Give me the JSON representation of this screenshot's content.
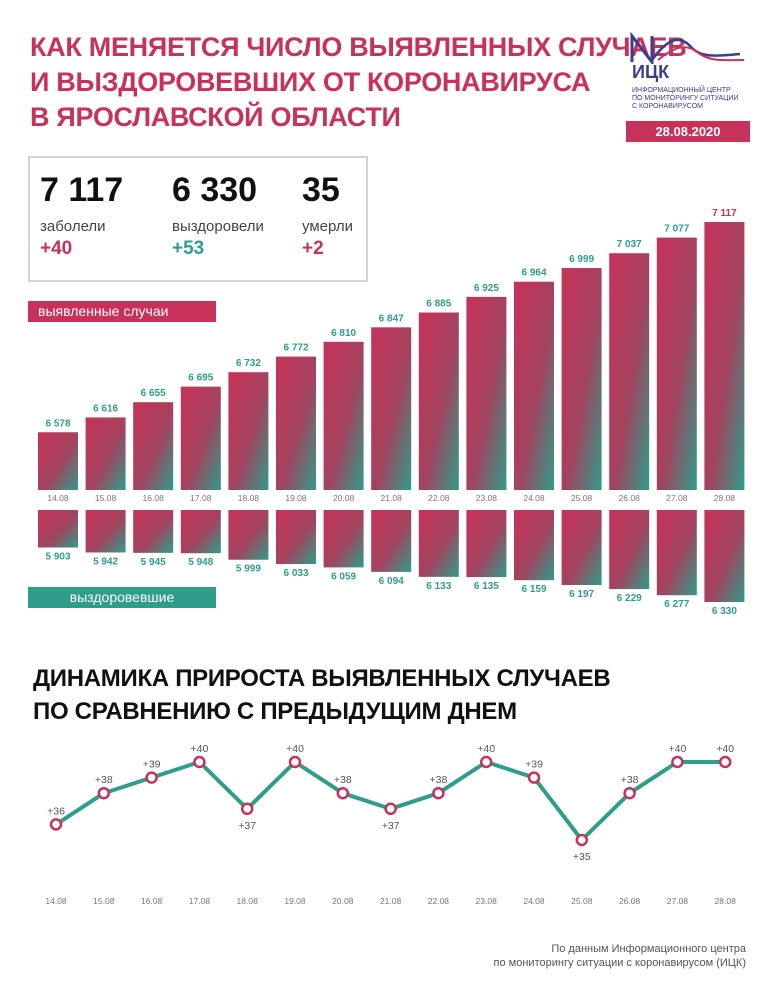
{
  "title": {
    "line1": "КАК МЕНЯЕТСЯ ЧИСЛО ВЫЯВЛЕННЫХ СЛУЧАЕВ",
    "line2": "И ВЫЗДОРОВЕВШИХ ОТ КОРОНАВИРУСА",
    "line3": "В ЯРОСЛАВСКОЙ ОБЛАСТИ"
  },
  "logo": {
    "name": "ИЦК",
    "sub1": "ИНФОРМАЦИОННЫЙ ЦЕНТР",
    "sub2": "ПО МОНИТОРИНГУ СИТУАЦИИ",
    "sub3": "С КОРОНАВИРУСОМ",
    "icon": "icc-wave-logo"
  },
  "date": "28.08.2020",
  "stats": {
    "cases": {
      "value": "7 117",
      "label": "заболели",
      "delta": "+40"
    },
    "recovered": {
      "value": "6 330",
      "label": "выздоровели",
      "delta": "+53"
    },
    "deaths": {
      "value": "35",
      "label": "умерли",
      "delta": "+2"
    }
  },
  "labels": {
    "cases_pill": "выявленные случаи",
    "recovered_pill": "выздоровевшие"
  },
  "colors": {
    "accent": "#c8325a",
    "teal": "#2e9d8a",
    "navy": "#3a3d8e"
  },
  "subtitle": {
    "line1": "ДИНАМИКА ПРИРОСТА ВЫЯВЛЕННЫХ СЛУЧАЕВ",
    "line2": "ПО СРАВНЕНИЮ С ПРЕДЫДУЩИМ ДНЕМ"
  },
  "source": {
    "line1": "По данным Информационного центра",
    "line2": "по мониторингу ситуации с коронавирусом (ИЦК)"
  },
  "chart_data": [
    {
      "type": "bar",
      "categories": [
        "14.08",
        "15.08",
        "16.08",
        "17.08",
        "18.08",
        "19.08",
        "20.08",
        "21.08",
        "22.08",
        "23.08",
        "24.08",
        "25.08",
        "26.08",
        "27.08",
        "28.08"
      ],
      "series": [
        {
          "name": "выявленные случаи",
          "values": [
            6578,
            6616,
            6655,
            6695,
            6732,
            6772,
            6810,
            6847,
            6885,
            6925,
            6964,
            6999,
            7037,
            7077,
            7117
          ],
          "labels": [
            "6 578",
            "6 616",
            "6 655",
            "6 695",
            "6 732",
            "6 772",
            "6 810",
            "6 847",
            "6 885",
            "6 925",
            "6 964",
            "6 999",
            "7 037",
            "7 077",
            "7 117"
          ]
        },
        {
          "name": "выздоровевшие",
          "values": [
            5903,
            5942,
            5945,
            5948,
            5999,
            6033,
            6059,
            6094,
            6133,
            6135,
            6159,
            6197,
            6229,
            6277,
            6330
          ],
          "labels": [
            "5 903",
            "5 942",
            "5 945",
            "5 948",
            "5 999",
            "6 033",
            "6 059",
            "6 094",
            "6 133",
            "6 135",
            "6 159",
            "6 197",
            "6 229",
            "6 277",
            "6 330"
          ]
        }
      ]
    },
    {
      "type": "line",
      "categories": [
        "14.08",
        "15.08",
        "16.08",
        "17.08",
        "18.08",
        "19.08",
        "20.08",
        "21.08",
        "22.08",
        "23.08",
        "24.08",
        "25.08",
        "26.08",
        "27.08",
        "28.08"
      ],
      "values": [
        36,
        38,
        39,
        40,
        37,
        40,
        38,
        37,
        38,
        40,
        39,
        35,
        38,
        40,
        40
      ],
      "labels": [
        "+36",
        "+38",
        "+39",
        "+40",
        "+37",
        "+40",
        "+38",
        "+37",
        "+38",
        "+40",
        "+39",
        "+35",
        "+38",
        "+40",
        "+40"
      ]
    }
  ]
}
